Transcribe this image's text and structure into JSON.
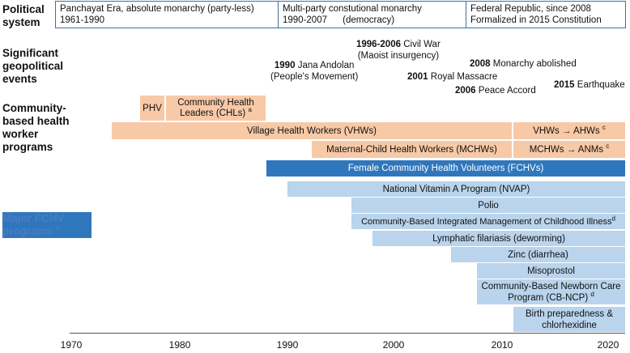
{
  "row_labels": {
    "political": "Political system",
    "events": "Significant geopolitical events",
    "chw": "Community-based health worker programs",
    "fchv": "Major FCHV programs",
    "fchv_sup": "b"
  },
  "political_systems": [
    {
      "line1": "Panchayat Era, absolute monarchy (party-less)",
      "line2": "1961-1990"
    },
    {
      "line1": "Multi-party constutional monarchy",
      "line2": "1990-2007      (democracy)"
    },
    {
      "line1": "Federal Republic, since 2008",
      "line2": "Formalized in 2015 Constitution"
    }
  ],
  "events": [
    {
      "year": "1990",
      "text": "Jana Andolan",
      "line2": "(People's Movement)"
    },
    {
      "year": "1996-2006",
      "text": "Civil War",
      "line2": "(Maoist insurgency)"
    },
    {
      "year": "2008",
      "text": "Monarchy abolished",
      "line2": ""
    },
    {
      "year": "2001",
      "text": "Royal Massacre",
      "line2": ""
    },
    {
      "year": "2006",
      "text": "Peace Accord",
      "line2": ""
    },
    {
      "year": "2015",
      "text": "Earthquake",
      "line2": ""
    }
  ],
  "chw_programs": [
    {
      "label": "PHV",
      "sup": "",
      "start": 1976.5,
      "end": 1979
    },
    {
      "label": "Community Health Leaders (CHLs)",
      "sup": "a",
      "start": 1979,
      "end": 1988
    },
    {
      "label": "Village Health Workers (VHWs)",
      "sup": "",
      "start": 1973.8,
      "end": 2011
    },
    {
      "label": "VHWs → AHWs",
      "sup": "c",
      "start": 2011,
      "end": 2020.4
    },
    {
      "label": "Maternal-Child Health Workers (MCHWs)",
      "sup": "",
      "start": 1992.3,
      "end": 2011
    },
    {
      "label": "MCHWs → ANMs",
      "sup": "c",
      "start": 2011,
      "end": 2020.4
    }
  ],
  "fchv_main": {
    "label": "Female Community Health Volunteers (FCHVs)",
    "start": 1988,
    "end": 2020.4
  },
  "fchv_programs": [
    {
      "label": "National Vitamin A Program (NVAP)",
      "sup": "",
      "start": 1990,
      "end": 2020.4
    },
    {
      "label": "Polio",
      "sup": "",
      "start": 1996,
      "end": 2020.4
    },
    {
      "label": "Community-Based Integrated Management of Childhood Illness",
      "sup": "d",
      "start": 1996,
      "end": 2020.4
    },
    {
      "label": "Lymphatic filariasis (deworming)",
      "sup": "",
      "start": 1998,
      "end": 2020.4
    },
    {
      "label": "Zinc (diarrhea)",
      "sup": "",
      "start": 2005.3,
      "end": 2020.4
    },
    {
      "label": "Misoprostol",
      "sup": "",
      "start": 2007.6,
      "end": 2020.4
    },
    {
      "label": "Community-Based Newborn Care Program (CB-NCP)",
      "sup": "d",
      "start": 2007.6,
      "end": 2020.4
    },
    {
      "label": "Birth preparedness & chlorhexidine",
      "sup": "",
      "start": 2011,
      "end": 2020.4
    }
  ],
  "axis": {
    "min": 1970,
    "max": 2020,
    "ticks": [
      "1970",
      "1980",
      "1990",
      "2000",
      "2010",
      "2020"
    ]
  }
}
